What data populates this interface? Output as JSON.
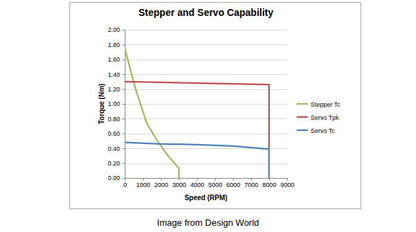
{
  "chart_data": {
    "type": "line",
    "title": "Stepper and Servo Capability",
    "x_label": "Speed (RPM)",
    "y_label": "Torque (Nm)",
    "xlim": [
      0,
      9000
    ],
    "xticks": [
      0,
      1000,
      2000,
      3000,
      4000,
      5000,
      6000,
      7000,
      8000,
      9000
    ],
    "ylim": [
      0,
      2
    ],
    "yticks": [
      {
        "value": 0,
        "label": "0.00"
      },
      {
        "value": 0.2,
        "label": "0.20"
      },
      {
        "value": 0.4,
        "label": "0.40"
      },
      {
        "value": 0.6,
        "label": "0.60"
      },
      {
        "value": 0.8,
        "label": "0.80"
      },
      {
        "value": 1,
        "label": "1.00"
      },
      {
        "value": 1.2,
        "label": "1.20"
      },
      {
        "value": 1.4,
        "label": "1.40"
      },
      {
        "value": 1.6,
        "label": "1.60"
      },
      {
        "value": 1.8,
        "label": "1.80"
      },
      {
        "value": 2,
        "label": "2.00"
      }
    ],
    "grid": true,
    "legend": "right",
    "series": [
      {
        "name": "Stepper Tc",
        "color": "#9bbb59",
        "x": [
          0,
          600,
          1200,
          1800,
          2400,
          3000,
          3000
        ],
        "values": [
          1.75,
          1.2,
          0.75,
          0.5,
          0.3,
          0.13,
          0
        ]
      },
      {
        "name": "Servo Tpk",
        "color": "#c0504d",
        "x": [
          0,
          8000,
          8000
        ],
        "values": [
          1.3,
          1.26,
          0.4
        ]
      },
      {
        "name": "Servo Tc",
        "color": "#4f81bd",
        "x": [
          0,
          2000,
          4000,
          6000,
          8000,
          8000
        ],
        "values": [
          0.48,
          0.46,
          0.45,
          0.43,
          0.39,
          0
        ]
      }
    ]
  },
  "caption": "Image from Design World"
}
